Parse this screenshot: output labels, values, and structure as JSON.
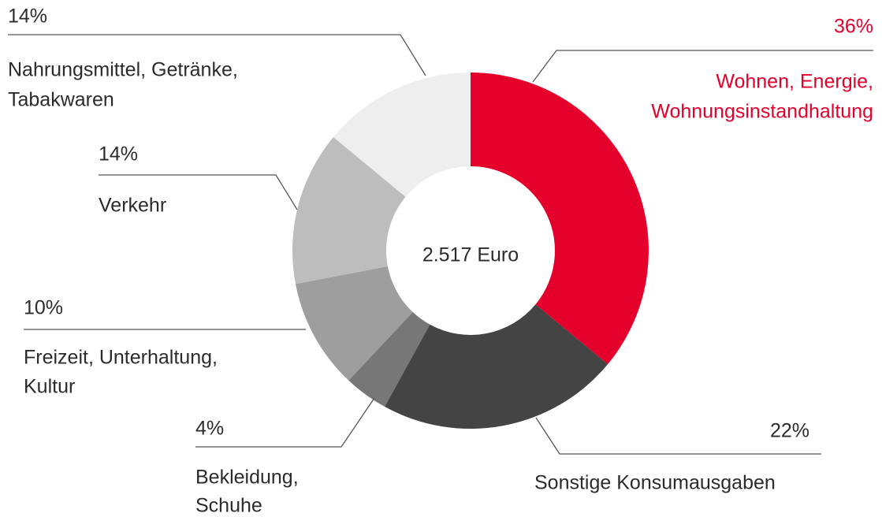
{
  "chart_data": {
    "type": "donut",
    "center_label": "2.517 Euro",
    "categories": [
      [
        "Wohnen, Energie,",
        "Wohnungsinstandhaltung"
      ],
      [
        "Sonstige Konsumausgaben"
      ],
      [
        "Bekleidung,",
        "Schuhe"
      ],
      [
        "Freizeit, Unterhaltung,",
        "Kultur"
      ],
      [
        "Verkehr"
      ],
      [
        "Nahrungsmittel, Getränke,",
        "Tabakwaren"
      ]
    ],
    "values": [
      36,
      22,
      4,
      10,
      14,
      14
    ],
    "value_labels": [
      "36%",
      "22%",
      "4%",
      "10%",
      "14%",
      "14%"
    ],
    "colors": [
      "#e4002b",
      "#444444",
      "#777777",
      "#9e9e9e",
      "#bdbdbd",
      "#eeeeee"
    ],
    "highlight_color": "#e4002b"
  }
}
